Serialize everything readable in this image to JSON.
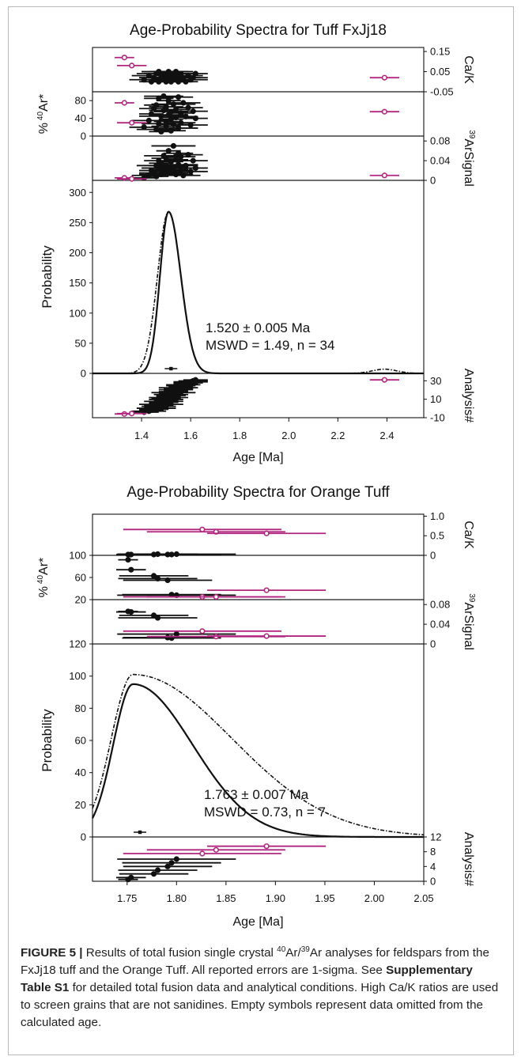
{
  "chart_data": [
    {
      "type": "scatter",
      "title": "Age-Probability Spectra for Tuff FxJj18",
      "xlabel": "Age [Ma]",
      "xlim": [
        1.2,
        2.55
      ],
      "xticks": [
        "1.4",
        "1.6",
        "1.8",
        "2.0",
        "2.2",
        "2.4"
      ],
      "xtick_values": [
        1.4,
        1.6,
        1.8,
        2.0,
        2.2,
        2.4
      ],
      "annotation_age": "1.520 ± 0.005 Ma",
      "annotation_mswd": "MSWD = 1.49, n = 34",
      "panels": {
        "cak": {
          "label": "Ca/K",
          "ylim": [
            -0.05,
            0.17
          ],
          "ticks": [
            "0.15",
            "0.05",
            "-0.05"
          ],
          "tick_values": [
            0.15,
            0.05,
            -0.05
          ]
        },
        "ar40": {
          "label_prefix": "%",
          "label_iso": "40",
          "label_el": "Ar*",
          "ylim": [
            0,
            100
          ],
          "ticks": [
            "80",
            "40",
            "0"
          ],
          "tick_values": [
            80,
            40,
            0
          ]
        },
        "ar39": {
          "label_iso": "39",
          "label_el": "ArSignal",
          "ylim": [
            0,
            0.09
          ],
          "ticks": [
            "0.08",
            "0.04",
            "0"
          ],
          "tick_values": [
            0.08,
            0.04,
            0
          ]
        },
        "prob": {
          "label": "Probability",
          "ylim": [
            0,
            320
          ],
          "ticks": [
            "300",
            "250",
            "200",
            "150",
            "100",
            "50",
            "0"
          ],
          "tick_values": [
            300,
            250,
            200,
            150,
            100,
            50,
            0
          ]
        },
        "analysis": {
          "label": "Analysis#",
          "ylim": [
            -10,
            38
          ],
          "ticks": [
            "30",
            "10",
            "-10"
          ],
          "tick_values": [
            30,
            10,
            -10
          ]
        }
      },
      "probability_curves": {
        "included": {
          "peak_age": 1.51,
          "peak_value": 268,
          "sigma_left": 0.035,
          "sigma_right": 0.05
        },
        "all": {
          "peak_age": 1.51,
          "peak_value": 268,
          "sigma_left": 0.045,
          "sigma_right": 0.05,
          "secondary_age": 2.39,
          "secondary_value": 7,
          "secondary_sigma": 0.05
        }
      },
      "weighted_mean_age": 1.52,
      "included": {
        "ages": [
          1.41,
          1.43,
          1.44,
          1.45,
          1.46,
          1.46,
          1.47,
          1.47,
          1.48,
          1.48,
          1.49,
          1.49,
          1.5,
          1.5,
          1.5,
          1.51,
          1.51,
          1.52,
          1.52,
          1.52,
          1.53,
          1.53,
          1.54,
          1.54,
          1.55,
          1.55,
          1.56,
          1.56,
          1.57,
          1.58,
          1.59,
          1.6,
          1.61,
          1.62
        ],
        "errors": [
          0.06,
          0.07,
          0.05,
          0.06,
          0.08,
          0.05,
          0.07,
          0.06,
          0.09,
          0.05,
          0.06,
          0.08,
          0.05,
          0.07,
          0.06,
          0.08,
          0.05,
          0.06,
          0.07,
          0.05,
          0.09,
          0.06,
          0.05,
          0.07,
          0.06,
          0.08,
          0.05,
          0.06,
          0.07,
          0.05,
          0.06,
          0.07,
          0.06,
          0.05
        ],
        "cak": [
          0.01,
          0.03,
          0.0,
          0.02,
          0.04,
          0.01,
          0.05,
          0.0,
          0.02,
          0.03,
          0.01,
          0.04,
          0.02,
          0.0,
          0.03,
          0.05,
          0.01,
          0.02,
          0.04,
          0.0,
          0.03,
          0.01,
          0.02,
          0.05,
          0.0,
          0.03,
          0.01,
          0.04,
          0.02,
          0.0,
          0.03,
          0.01,
          0.02,
          0.04
        ],
        "ar40": [
          20,
          35,
          50,
          62,
          15,
          70,
          28,
          85,
          45,
          10,
          58,
          90,
          33,
          66,
          22,
          48,
          80,
          12,
          55,
          38,
          72,
          26,
          60,
          42,
          88,
          18,
          52,
          30,
          75,
          44,
          64,
          25,
          56,
          40
        ],
        "ar39": [
          0.005,
          0.01,
          0.02,
          0.015,
          0.03,
          0.008,
          0.025,
          0.04,
          0.012,
          0.035,
          0.02,
          0.05,
          0.018,
          0.03,
          0.045,
          0.022,
          0.06,
          0.028,
          0.015,
          0.038,
          0.07,
          0.025,
          0.042,
          0.012,
          0.055,
          0.032,
          0.02,
          0.048,
          0.01,
          0.03,
          0.052,
          0.018,
          0.04,
          0.025
        ]
      },
      "excluded": {
        "ages": [
          1.33,
          1.36,
          2.39
        ],
        "errors": [
          0.04,
          0.06,
          0.06
        ],
        "cak": [
          0.12,
          0.08,
          0.02
        ],
        "ar40": [
          75,
          30,
          55
        ],
        "ar39": [
          0.005,
          0.003,
          0.01
        ]
      }
    },
    {
      "type": "scatter",
      "title": "Age-Probability Spectra for Orange Tuff",
      "xlabel": "Age [Ma]",
      "xlim": [
        1.715,
        2.05
      ],
      "xticks": [
        "1.75",
        "1.80",
        "1.85",
        "1.90",
        "1.95",
        "2.00",
        "2.05"
      ],
      "xtick_values": [
        1.75,
        1.8,
        1.85,
        1.9,
        1.95,
        2.0,
        2.05
      ],
      "annotation_age": "1.763 ± 0.007 Ma",
      "annotation_mswd": "MSWD = 0.73, n = 7",
      "panels": {
        "cak": {
          "label": "Ca/K",
          "ylim": [
            0,
            1.05
          ],
          "ticks": [
            "1.0",
            "0.5",
            "0"
          ],
          "tick_values": [
            1.0,
            0.5,
            0
          ]
        },
        "ar40": {
          "label_prefix": "%",
          "label_iso": "40",
          "label_el": "Ar*",
          "ylim": [
            20,
            100
          ],
          "ticks": [
            "100",
            "60",
            "20"
          ],
          "tick_values": [
            100,
            60,
            20
          ]
        },
        "ar39": {
          "label_iso": "39",
          "label_el": "ArSignal",
          "ylim": [
            0,
            0.09
          ],
          "ticks": [
            "0.08",
            "0.04",
            "0"
          ],
          "tick_values": [
            0.08,
            0.04,
            0
          ]
        },
        "prob": {
          "label": "Probability",
          "ylim": [
            0,
            120
          ],
          "ticks": [
            "120",
            "100",
            "80",
            "60",
            "40",
            "20",
            "0"
          ],
          "tick_values": [
            120,
            100,
            80,
            60,
            40,
            20,
            0
          ]
        },
        "analysis": {
          "label": "Analysis#",
          "ylim": [
            0,
            12
          ],
          "ticks": [
            "12",
            "8",
            "4",
            "0"
          ],
          "tick_values": [
            12,
            8,
            4,
            0
          ]
        }
      },
      "probability_curves": {
        "included": {
          "peak_age": 1.756,
          "peak_value": 95,
          "sigma_left": 0.02,
          "sigma_right": 0.06
        },
        "all": {
          "peak_age": 1.756,
          "peak_value": 101,
          "sigma_left": 0.022,
          "sigma_right": 0.1
        }
      },
      "weighted_mean_age": 1.763,
      "included": {
        "ages": [
          1.751,
          1.754,
          1.777,
          1.781,
          1.791,
          1.795,
          1.8
        ],
        "errors": [
          0.01,
          0.015,
          0.035,
          0.04,
          0.045,
          0.05,
          0.06
        ],
        "cak": [
          0.02,
          0.02,
          0.02,
          0.03,
          0.02,
          0.02,
          0.03
        ],
        "ar40": [
          92,
          74,
          63,
          58,
          55,
          29,
          28
        ],
        "ar39": [
          0.066,
          0.065,
          0.058,
          0.053,
          0.013,
          0.012,
          0.02
        ],
        "analysis": [
          0.5,
          1,
          2,
          3,
          4,
          5,
          6
        ]
      },
      "excluded": {
        "ages": [
          1.826,
          1.84,
          1.891
        ],
        "errors": [
          0.08,
          0.07,
          0.06
        ],
        "cak": [
          0.66,
          0.6,
          0.56
        ],
        "ar40": [
          25,
          25,
          37
        ],
        "ar39": [
          0.026,
          0.015,
          0.016
        ],
        "analysis": [
          7.5,
          8.5,
          9.5
        ]
      }
    }
  ],
  "caption": {
    "label": "FIGURE 5 |",
    "text_1": " Results of total fusion single crystal ",
    "iso_a": "40",
    "text_2": "Ar/",
    "iso_b": "39",
    "text_3": "Ar analyses for feldspars from the FxJj18 tuff and the Orange Tuff. All reported errors are 1-sigma. See ",
    "link": "Supplementary Table S1",
    "text_4": " for detailed total fusion data and analytical conditions. High Ca/K ratios are used to screen grains that are not sanidines. Empty symbols represent data omitted from the calculated age."
  },
  "colors": {
    "included": "#111111",
    "excluded": "#b0267f",
    "axis": "#111111"
  }
}
